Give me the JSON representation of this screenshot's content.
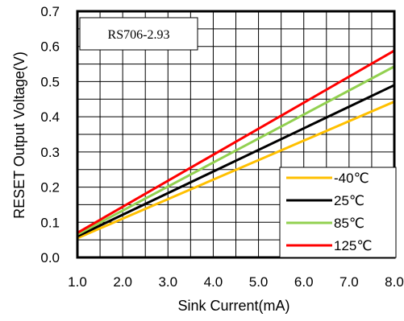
{
  "chart_data": {
    "type": "line",
    "title": "",
    "annotation": "RS706-2.93",
    "xlabel": "Sink Current(mA)",
    "ylabel": "RESET Output Voltage(V)",
    "xlim": [
      1.0,
      8.0
    ],
    "ylim": [
      0.0,
      0.7
    ],
    "xticks": [
      "1.0",
      "2.0",
      "3.0",
      "4.0",
      "5.0",
      "6.0",
      "7.0",
      "8.0"
    ],
    "yticks": [
      "0.0",
      "0.1",
      "0.2",
      "0.3",
      "0.4",
      "0.5",
      "0.6",
      "0.7"
    ],
    "grid": true,
    "legend_position": "bottom-right",
    "series": [
      {
        "name": "-40℃",
        "color": "#FFC000",
        "x": [
          1.0,
          8.0
        ],
        "y": [
          0.055,
          0.443
        ]
      },
      {
        "name": "25℃",
        "color": "#000000",
        "x": [
          1.0,
          8.0
        ],
        "y": [
          0.06,
          0.49
        ]
      },
      {
        "name": "85℃",
        "color": "#92D050",
        "x": [
          1.0,
          8.0
        ],
        "y": [
          0.065,
          0.543
        ]
      },
      {
        "name": "125℃",
        "color": "#FF0000",
        "x": [
          1.0,
          8.0
        ],
        "y": [
          0.07,
          0.588
        ]
      }
    ]
  }
}
